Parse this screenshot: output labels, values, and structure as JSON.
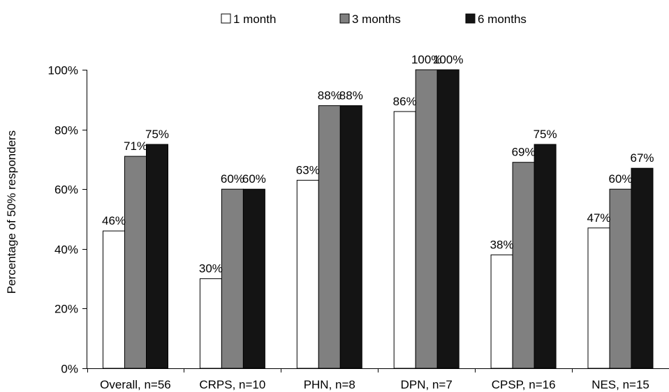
{
  "chart_data": {
    "type": "bar",
    "title": "",
    "xlabel": "",
    "ylabel": "Percentage of 50% responders",
    "ylim": [
      0,
      100
    ],
    "yticks": [
      0,
      20,
      40,
      60,
      80,
      100
    ],
    "ytick_suffix": "%",
    "legend_position": "top",
    "grid": false,
    "categories": [
      "Overall, n=56",
      "CRPS, n=10",
      "PHN, n=8",
      "DPN, n=7",
      "CPSP, n=16",
      "NES, n=15"
    ],
    "series": [
      {
        "name": "1 month",
        "color": "#ffffff",
        "values": [
          46,
          30,
          63,
          86,
          38,
          47
        ]
      },
      {
        "name": "3 months",
        "color": "#808080",
        "values": [
          71,
          60,
          88,
          100,
          69,
          60
        ]
      },
      {
        "name": "6 months",
        "color": "#141414",
        "values": [
          75,
          60,
          88,
          100,
          75,
          67
        ]
      }
    ]
  }
}
